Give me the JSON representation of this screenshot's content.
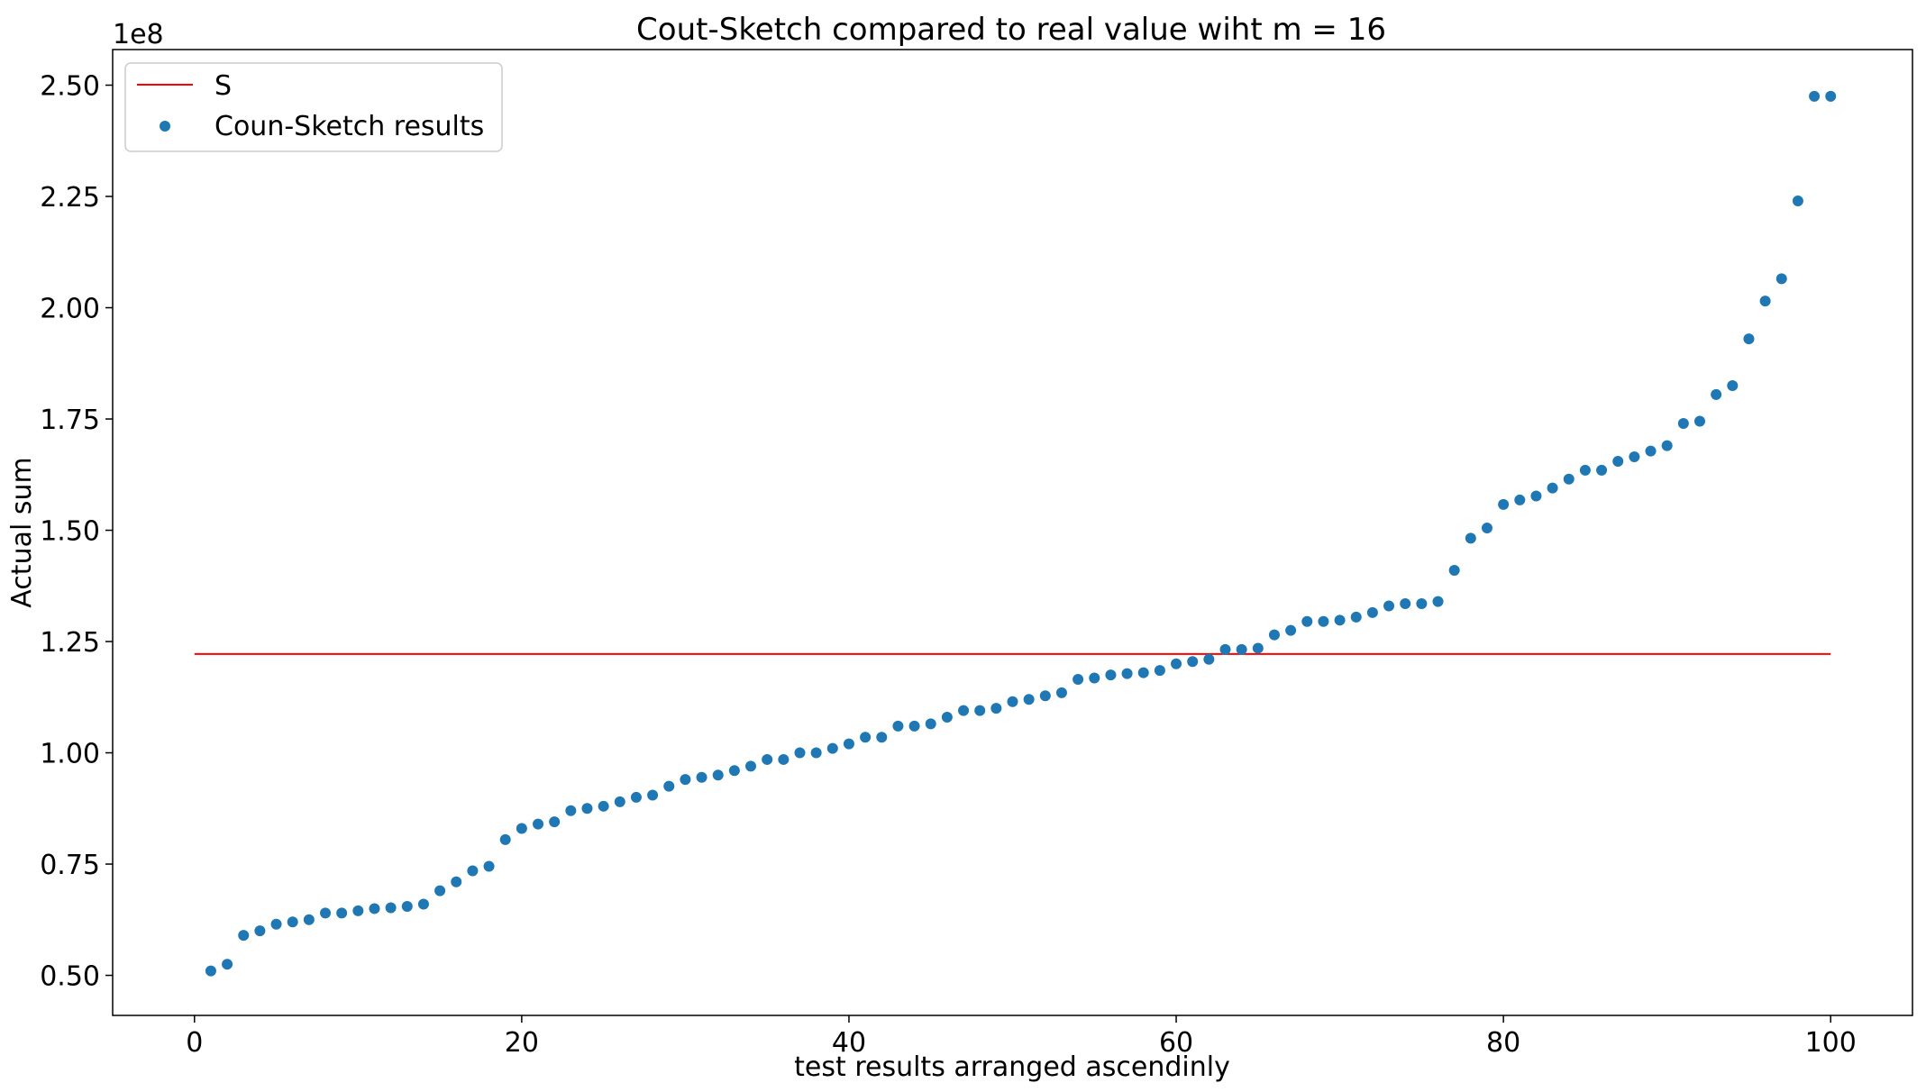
{
  "chart_data": {
    "type": "scatter",
    "title": "Cout-Sketch compared to real value wiht m = 16",
    "xlabel": "test results arranged ascendinly",
    "ylabel": "Actual sum",
    "y_offset_text": "1e8",
    "xlim": [
      -5,
      105
    ],
    "ylim": [
      0.41,
      2.58
    ],
    "y_scale_factor": 100000000,
    "x_ticks": [
      0,
      20,
      40,
      60,
      80,
      100
    ],
    "x_tick_labels": [
      "0",
      "20",
      "40",
      "60",
      "80",
      "100"
    ],
    "y_ticks": [
      0.5,
      0.75,
      1.0,
      1.25,
      1.5,
      1.75,
      2.0,
      2.25,
      2.5
    ],
    "y_tick_labels": [
      "0.50",
      "0.75",
      "1.00",
      "1.25",
      "1.50",
      "1.75",
      "2.00",
      "2.25",
      "2.50"
    ],
    "grid": false,
    "legend_position": "upper-left",
    "series": [
      {
        "name": "S",
        "kind": "line",
        "color": "#ff0000",
        "x": [
          0,
          100
        ],
        "y": [
          1.222,
          1.222
        ]
      },
      {
        "name": "Coun-Sketch results",
        "kind": "scatter",
        "color": "#1f77b4",
        "x": [
          1,
          2,
          3,
          4,
          5,
          6,
          7,
          8,
          9,
          10,
          11,
          12,
          13,
          14,
          15,
          16,
          17,
          18,
          19,
          20,
          21,
          22,
          23,
          24,
          25,
          26,
          27,
          28,
          29,
          30,
          31,
          32,
          33,
          34,
          35,
          36,
          37,
          38,
          39,
          40,
          41,
          42,
          43,
          44,
          45,
          46,
          47,
          48,
          49,
          50,
          51,
          52,
          53,
          54,
          55,
          56,
          57,
          58,
          59,
          60,
          61,
          62,
          63,
          64,
          65,
          66,
          67,
          68,
          69,
          70,
          71,
          72,
          73,
          74,
          75,
          76,
          77,
          78,
          79,
          80,
          81,
          82,
          83,
          84,
          85,
          86,
          87,
          88,
          89,
          90,
          91,
          92,
          93,
          94,
          95,
          96,
          97,
          98,
          99,
          100
        ],
        "y": [
          0.51,
          0.525,
          0.59,
          0.6,
          0.615,
          0.62,
          0.625,
          0.64,
          0.64,
          0.645,
          0.65,
          0.652,
          0.655,
          0.66,
          0.69,
          0.71,
          0.735,
          0.745,
          0.805,
          0.83,
          0.84,
          0.845,
          0.87,
          0.875,
          0.88,
          0.89,
          0.9,
          0.905,
          0.925,
          0.94,
          0.945,
          0.95,
          0.96,
          0.97,
          0.985,
          0.985,
          1.0,
          1.0,
          1.01,
          1.02,
          1.035,
          1.035,
          1.06,
          1.06,
          1.065,
          1.08,
          1.095,
          1.095,
          1.1,
          1.115,
          1.12,
          1.128,
          1.135,
          1.165,
          1.168,
          1.175,
          1.178,
          1.18,
          1.185,
          1.2,
          1.205,
          1.21,
          1.232,
          1.232,
          1.235,
          1.265,
          1.275,
          1.295,
          1.295,
          1.298,
          1.305,
          1.315,
          1.33,
          1.335,
          1.335,
          1.34,
          1.41,
          1.482,
          1.505,
          1.558,
          1.568,
          1.577,
          1.595,
          1.615,
          1.635,
          1.635,
          1.655,
          1.665,
          1.678,
          1.69,
          1.74,
          1.745,
          1.805,
          1.825,
          1.93,
          2.015,
          2.065,
          2.24,
          2.475,
          2.475
        ]
      }
    ]
  }
}
